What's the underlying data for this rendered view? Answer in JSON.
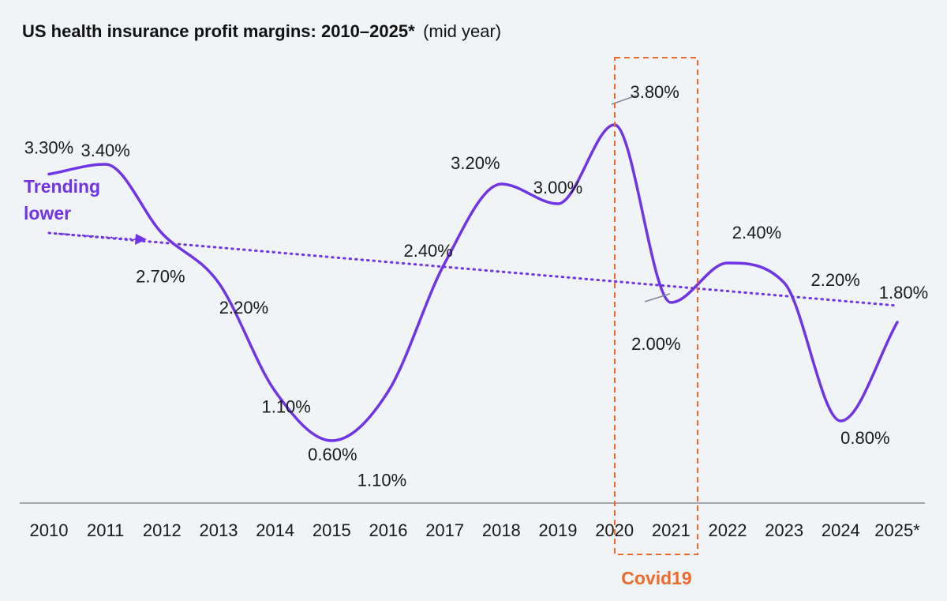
{
  "title": {
    "main": "US health insurance profit margins: 2010–2025*",
    "sub": "(mid year)"
  },
  "chart_data": {
    "type": "line",
    "title": "US health insurance profit margins: 2010–2025* (mid year)",
    "categories": [
      "2010",
      "2011",
      "2012",
      "2013",
      "2014",
      "2015",
      "2016",
      "2017",
      "2018",
      "2019",
      "2020",
      "2021",
      "2022",
      "2023",
      "2024",
      "2025*"
    ],
    "values": [
      3.3,
      3.4,
      2.7,
      2.2,
      1.1,
      0.6,
      1.1,
      2.4,
      3.2,
      3.0,
      3.8,
      2.0,
      2.4,
      2.2,
      0.8,
      1.8
    ],
    "labels": [
      "3.30%",
      "3.40%",
      "2.70%",
      "2.20%",
      "1.10%",
      "0.60%",
      "1.10%",
      "2.40%",
      "3.20%",
      "3.00%",
      "3.80%",
      "2.00%",
      "2.40%",
      "2.20%",
      "0.80%",
      "1.80%"
    ],
    "unit": "%",
    "trendline": {
      "label_line1": "Trending",
      "label_line2": "lower",
      "style": "dotted"
    },
    "highlight": {
      "label": "Covid19",
      "from": "2020",
      "to": "2021",
      "style": "dashed box"
    },
    "grid": false,
    "legend": "none"
  },
  "colors": {
    "line": "#7133e6",
    "trend": "#7133e6",
    "highlight": "#ee6a2a",
    "axis": "#8a8f96",
    "leader": "#7c8590",
    "background": "#f1f4f7"
  }
}
